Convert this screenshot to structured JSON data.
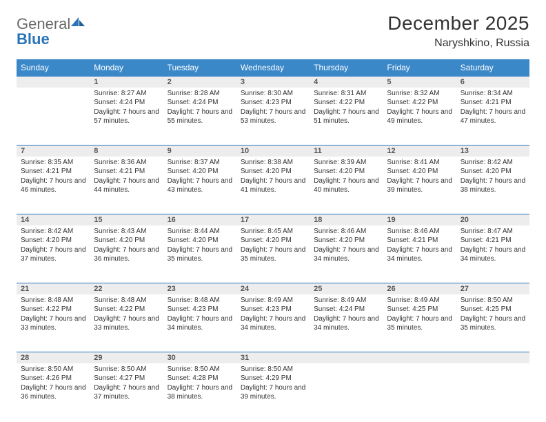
{
  "logo": {
    "word1": "General",
    "word2": "Blue"
  },
  "title": "December 2025",
  "subtitle": "Naryshkino, Russia",
  "colors": {
    "header_bg": "#3b88c9",
    "header_text": "#ffffff",
    "rule": "#2a74ba",
    "daynum_bg": "#ededed",
    "text": "#333333"
  },
  "weekdays": [
    "Sunday",
    "Monday",
    "Tuesday",
    "Wednesday",
    "Thursday",
    "Friday",
    "Saturday"
  ],
  "weeks": [
    [
      null,
      {
        "n": "1",
        "sr": "Sunrise: 8:27 AM",
        "ss": "Sunset: 4:24 PM",
        "dl": "Daylight: 7 hours and 57 minutes."
      },
      {
        "n": "2",
        "sr": "Sunrise: 8:28 AM",
        "ss": "Sunset: 4:24 PM",
        "dl": "Daylight: 7 hours and 55 minutes."
      },
      {
        "n": "3",
        "sr": "Sunrise: 8:30 AM",
        "ss": "Sunset: 4:23 PM",
        "dl": "Daylight: 7 hours and 53 minutes."
      },
      {
        "n": "4",
        "sr": "Sunrise: 8:31 AM",
        "ss": "Sunset: 4:22 PM",
        "dl": "Daylight: 7 hours and 51 minutes."
      },
      {
        "n": "5",
        "sr": "Sunrise: 8:32 AM",
        "ss": "Sunset: 4:22 PM",
        "dl": "Daylight: 7 hours and 49 minutes."
      },
      {
        "n": "6",
        "sr": "Sunrise: 8:34 AM",
        "ss": "Sunset: 4:21 PM",
        "dl": "Daylight: 7 hours and 47 minutes."
      }
    ],
    [
      {
        "n": "7",
        "sr": "Sunrise: 8:35 AM",
        "ss": "Sunset: 4:21 PM",
        "dl": "Daylight: 7 hours and 46 minutes."
      },
      {
        "n": "8",
        "sr": "Sunrise: 8:36 AM",
        "ss": "Sunset: 4:21 PM",
        "dl": "Daylight: 7 hours and 44 minutes."
      },
      {
        "n": "9",
        "sr": "Sunrise: 8:37 AM",
        "ss": "Sunset: 4:20 PM",
        "dl": "Daylight: 7 hours and 43 minutes."
      },
      {
        "n": "10",
        "sr": "Sunrise: 8:38 AM",
        "ss": "Sunset: 4:20 PM",
        "dl": "Daylight: 7 hours and 41 minutes."
      },
      {
        "n": "11",
        "sr": "Sunrise: 8:39 AM",
        "ss": "Sunset: 4:20 PM",
        "dl": "Daylight: 7 hours and 40 minutes."
      },
      {
        "n": "12",
        "sr": "Sunrise: 8:41 AM",
        "ss": "Sunset: 4:20 PM",
        "dl": "Daylight: 7 hours and 39 minutes."
      },
      {
        "n": "13",
        "sr": "Sunrise: 8:42 AM",
        "ss": "Sunset: 4:20 PM",
        "dl": "Daylight: 7 hours and 38 minutes."
      }
    ],
    [
      {
        "n": "14",
        "sr": "Sunrise: 8:42 AM",
        "ss": "Sunset: 4:20 PM",
        "dl": "Daylight: 7 hours and 37 minutes."
      },
      {
        "n": "15",
        "sr": "Sunrise: 8:43 AM",
        "ss": "Sunset: 4:20 PM",
        "dl": "Daylight: 7 hours and 36 minutes."
      },
      {
        "n": "16",
        "sr": "Sunrise: 8:44 AM",
        "ss": "Sunset: 4:20 PM",
        "dl": "Daylight: 7 hours and 35 minutes."
      },
      {
        "n": "17",
        "sr": "Sunrise: 8:45 AM",
        "ss": "Sunset: 4:20 PM",
        "dl": "Daylight: 7 hours and 35 minutes."
      },
      {
        "n": "18",
        "sr": "Sunrise: 8:46 AM",
        "ss": "Sunset: 4:20 PM",
        "dl": "Daylight: 7 hours and 34 minutes."
      },
      {
        "n": "19",
        "sr": "Sunrise: 8:46 AM",
        "ss": "Sunset: 4:21 PM",
        "dl": "Daylight: 7 hours and 34 minutes."
      },
      {
        "n": "20",
        "sr": "Sunrise: 8:47 AM",
        "ss": "Sunset: 4:21 PM",
        "dl": "Daylight: 7 hours and 34 minutes."
      }
    ],
    [
      {
        "n": "21",
        "sr": "Sunrise: 8:48 AM",
        "ss": "Sunset: 4:22 PM",
        "dl": "Daylight: 7 hours and 33 minutes."
      },
      {
        "n": "22",
        "sr": "Sunrise: 8:48 AM",
        "ss": "Sunset: 4:22 PM",
        "dl": "Daylight: 7 hours and 33 minutes."
      },
      {
        "n": "23",
        "sr": "Sunrise: 8:48 AM",
        "ss": "Sunset: 4:23 PM",
        "dl": "Daylight: 7 hours and 34 minutes."
      },
      {
        "n": "24",
        "sr": "Sunrise: 8:49 AM",
        "ss": "Sunset: 4:23 PM",
        "dl": "Daylight: 7 hours and 34 minutes."
      },
      {
        "n": "25",
        "sr": "Sunrise: 8:49 AM",
        "ss": "Sunset: 4:24 PM",
        "dl": "Daylight: 7 hours and 34 minutes."
      },
      {
        "n": "26",
        "sr": "Sunrise: 8:49 AM",
        "ss": "Sunset: 4:25 PM",
        "dl": "Daylight: 7 hours and 35 minutes."
      },
      {
        "n": "27",
        "sr": "Sunrise: 8:50 AM",
        "ss": "Sunset: 4:25 PM",
        "dl": "Daylight: 7 hours and 35 minutes."
      }
    ],
    [
      {
        "n": "28",
        "sr": "Sunrise: 8:50 AM",
        "ss": "Sunset: 4:26 PM",
        "dl": "Daylight: 7 hours and 36 minutes."
      },
      {
        "n": "29",
        "sr": "Sunrise: 8:50 AM",
        "ss": "Sunset: 4:27 PM",
        "dl": "Daylight: 7 hours and 37 minutes."
      },
      {
        "n": "30",
        "sr": "Sunrise: 8:50 AM",
        "ss": "Sunset: 4:28 PM",
        "dl": "Daylight: 7 hours and 38 minutes."
      },
      {
        "n": "31",
        "sr": "Sunrise: 8:50 AM",
        "ss": "Sunset: 4:29 PM",
        "dl": "Daylight: 7 hours and 39 minutes."
      },
      null,
      null,
      null
    ]
  ]
}
